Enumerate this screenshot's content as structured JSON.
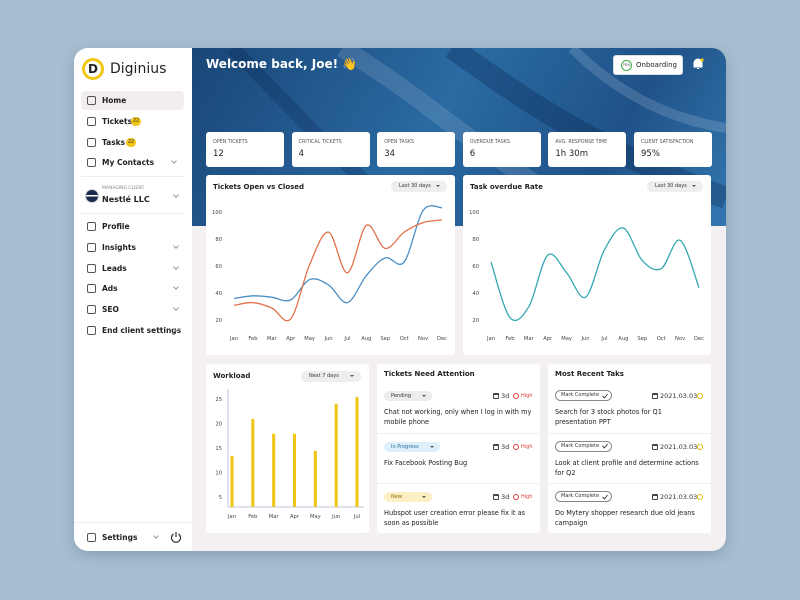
{
  "sidebar": {
    "logo": "D",
    "brand": "Diginius",
    "nav": [
      {
        "label": "Home"
      },
      {
        "label": "Tickets",
        "badge": "22"
      },
      {
        "label": "Tasks",
        "badge": "22"
      },
      {
        "label": "My Contacts"
      }
    ],
    "client_caption": "MANAGING CLIENT",
    "client": "Nestlé LLC",
    "nav2": [
      "Profile",
      "Insights",
      "Leads",
      "Ads",
      "SEO",
      "End client settings"
    ],
    "settings": "Settings"
  },
  "header": {
    "welcome": "Welcome back, Joe! 👋",
    "onboarding": "Onboarding",
    "progress": "70%"
  },
  "stats": [
    {
      "label": "OPEN TICKETS",
      "value": "12"
    },
    {
      "label": "CRITICAL TICKETS",
      "value": "4"
    },
    {
      "label": "OPEN TASKS",
      "value": "34"
    },
    {
      "label": "OVERDUE TASKS",
      "value": "6"
    },
    {
      "label": "AVG. RESPONSE TIME",
      "value": "1h 30m"
    },
    {
      "label": "CLIENT SATISFACTION",
      "value": "95%"
    }
  ],
  "chart_data": [
    {
      "type": "line",
      "title": "Tickets Open vs Closed",
      "filter": "Last 30 days",
      "categories": [
        "Jan",
        "Feb",
        "Mar",
        "Apr",
        "May",
        "Jun",
        "Jul",
        "Aug",
        "Sep",
        "Oct",
        "Nov",
        "Dec"
      ],
      "series": [
        {
          "color": "#4b8fc6",
          "values": [
            36,
            38,
            37,
            35,
            50,
            46,
            33,
            53,
            66,
            63,
            101,
            103
          ]
        },
        {
          "color": "#e2714a",
          "values": [
            31,
            33,
            29,
            21,
            61,
            85,
            55,
            90,
            73,
            85,
            92,
            94
          ]
        }
      ],
      "ylim": [
        15,
        105
      ],
      "yticks": [
        20,
        40,
        60,
        80,
        100
      ]
    },
    {
      "type": "line",
      "title": "Task overdue Rate",
      "filter": "Last 30 days",
      "categories": [
        "Jan",
        "Feb",
        "Mar",
        "Apr",
        "May",
        "Jun",
        "Jul",
        "Aug",
        "Sep",
        "Oct",
        "Nov",
        "Dec"
      ],
      "series": [
        {
          "color": "#35a7b3",
          "values": [
            63,
            22,
            30,
            68,
            55,
            37,
            72,
            88,
            64,
            58,
            79,
            44
          ]
        }
      ],
      "ylim": [
        15,
        105
      ],
      "yticks": [
        20,
        40,
        60,
        80,
        100
      ]
    },
    {
      "type": "bar",
      "title": "Workload",
      "filter": "Next 7 days",
      "categories": [
        "Jan",
        "Feb",
        "Mar",
        "Apr",
        "May",
        "Jun",
        "Jul"
      ],
      "values": [
        13.4,
        20.9,
        17.9,
        17.9,
        14.4,
        24,
        25.4
      ],
      "color": "#f0c514",
      "ylim": [
        3,
        27
      ],
      "yticks": [
        5,
        10,
        15,
        20,
        25
      ]
    }
  ],
  "tickets": {
    "title": "Tickets Need Attention",
    "items": [
      {
        "status": "Pending",
        "age": "3d",
        "priority": "High",
        "text": "Chat not working, only when I log in with my mobile phone"
      },
      {
        "status": "In Progress",
        "age": "3d",
        "priority": "High",
        "text": "Fix Facebook Posting Bug"
      },
      {
        "status": "New",
        "age": "3d",
        "priority": "High",
        "text": "Hubspot user creation error  please fix it as soon as possible"
      }
    ]
  },
  "tasks": {
    "title": "Most Recent Taks",
    "items": [
      {
        "action": "Mark Complete",
        "date": "2021.03.03.",
        "text": "Search for 3 stock photos for Q1 presentation PPT"
      },
      {
        "action": "Mark Complete",
        "date": "2021.03.03.",
        "text": "Look at client profile and determine actions for Q2"
      },
      {
        "action": "Mark Complete",
        "date": "2021.03.03.",
        "text": "Do Mytery shopper research due old jeans campaign"
      }
    ]
  }
}
